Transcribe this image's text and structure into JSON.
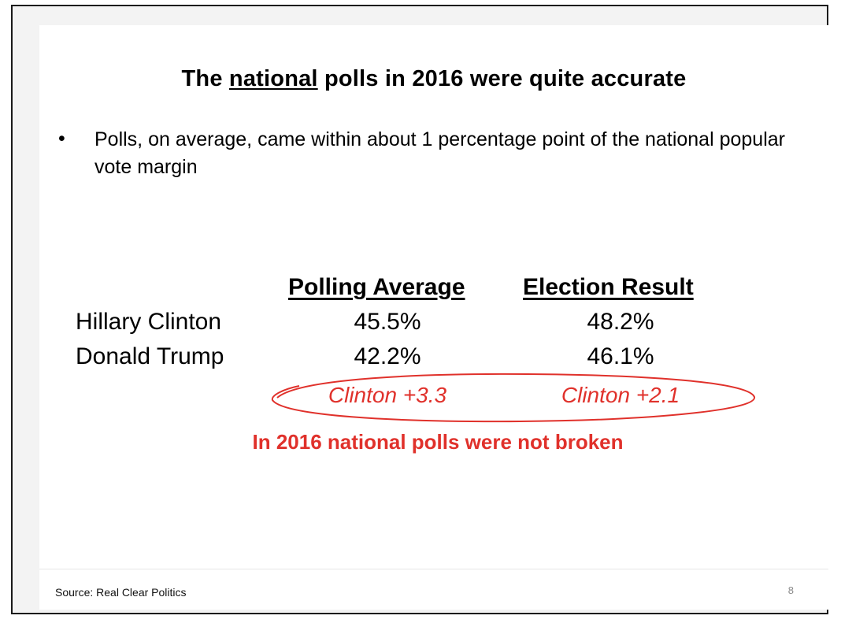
{
  "title": {
    "prefix": "The ",
    "underlined": "national",
    "suffix": " polls in 2016 were quite accurate"
  },
  "bullet": {
    "marker": "•",
    "text": "Polls, on average, came within about 1 percentage point of the national popular vote margin"
  },
  "table": {
    "columns": [
      "Polling Average",
      "Election Result"
    ],
    "rows": [
      {
        "label": "Hillary Clinton",
        "values": [
          "45.5%",
          "48.2%"
        ]
      },
      {
        "label": "Donald Trump",
        "values": [
          "42.2%",
          "46.1%"
        ]
      }
    ],
    "margins": [
      "Clinton +3.3",
      "Clinton +2.1"
    ]
  },
  "callout": "In 2016 national polls were not broken",
  "accent_color": "#e0312b",
  "footer": {
    "source": "Source: Real Clear Politics",
    "page_number": "8"
  }
}
